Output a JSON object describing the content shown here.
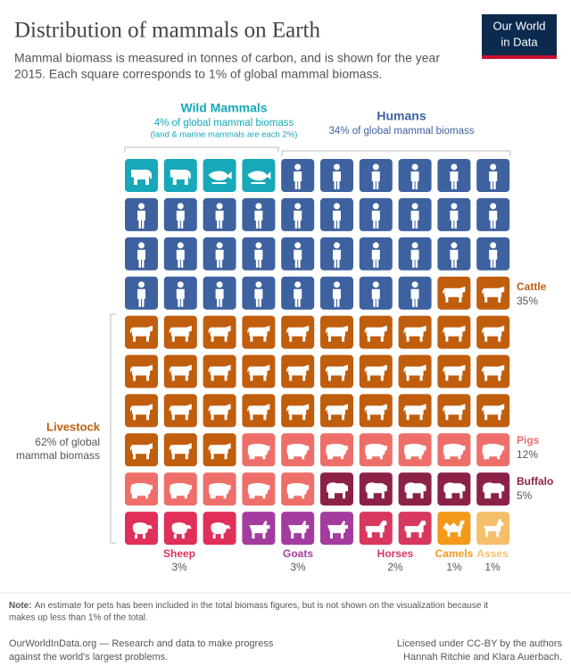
{
  "chart_data": {
    "type": "waffle",
    "title": "Distribution of mammals on Earth",
    "subtitle_lines": [
      "Mammal biomass is measured in tonnes of carbon, and is shown for the year",
      "2015. Each square corresponds to 1% of global mammal biomass."
    ],
    "logo_lines": [
      "Our World",
      "in Data"
    ],
    "columns": 10,
    "series": [
      {
        "name": "Wild Mammals",
        "color": "#17a8b9",
        "values": [
          4
        ],
        "value_labels": [
          "4% of global mammal biomass"
        ],
        "note": "(land & marine mammals are each 2%)"
      },
      {
        "name": "Humans",
        "color": "#3e62a0",
        "values": [
          34
        ],
        "value_labels": [
          "34% of global mammal biomass"
        ]
      },
      {
        "name": "Cattle",
        "color": "#c05e0e",
        "values": [
          35
        ],
        "value_labels": [
          "35%"
        ]
      },
      {
        "name": "Pigs",
        "color": "#ee6f69",
        "values": [
          12
        ],
        "value_labels": [
          "12%"
        ]
      },
      {
        "name": "Buffalo",
        "color": "#8c2148",
        "values": [
          5
        ],
        "value_labels": [
          "5%"
        ]
      },
      {
        "name": "Sheep",
        "color": "#e0305a",
        "values": [
          3
        ],
        "value_labels": [
          "3%"
        ]
      },
      {
        "name": "Goats",
        "color": "#a43c9f",
        "values": [
          3
        ],
        "value_labels": [
          "3%"
        ]
      },
      {
        "name": "Horses",
        "color": "#d8385f",
        "values": [
          2
        ],
        "value_labels": [
          "2%"
        ]
      },
      {
        "name": "Camels",
        "color": "#f39a1b",
        "values": [
          1
        ],
        "value_labels": [
          "1%"
        ]
      },
      {
        "name": "Asses",
        "color": "#f5bf6a",
        "values": [
          1
        ],
        "value_labels": [
          "1%"
        ]
      }
    ],
    "group": {
      "name": "Livestock",
      "label_lines": [
        "62% of global",
        "mammal biomass"
      ]
    },
    "note_label": "Note:",
    "note_lines": [
      "An estimate for pets has been included in the total biomass figures, but is not shown on the visualization because it",
      "makes up less than 1% of the total."
    ],
    "source_lines": [
      "OurWorldInData.org — Research and data to make progress",
      "against the world's largest problems."
    ],
    "license_lines": [
      "Licensed under CC-BY by the authors",
      "Hannah Ritchie and Klara Auerbach."
    ]
  }
}
